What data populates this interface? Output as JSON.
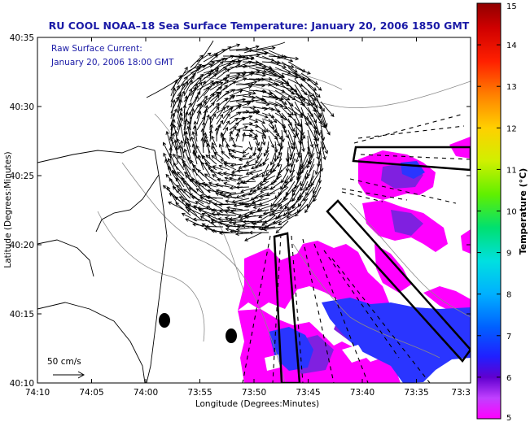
{
  "chart_data": {
    "type": "heatmap",
    "title": "RU COOL  NOAA–18  Sea Surface Temperature:  January 20, 2006 1850 GMT",
    "annotations": [
      "Raw Surface Current:",
      "January 20, 2006 18:00 GMT"
    ],
    "scale_label": "50 cm/s",
    "xlabel": "Longitude (Degrees:Minutes)",
    "ylabel": "Latitude (Degrees:Minutes)",
    "x_ticks": [
      "74:10",
      "74:05",
      "74:00",
      "73:55",
      "73:50",
      "73:45",
      "73:40",
      "73:35",
      "73:3"
    ],
    "y_ticks": [
      "40:35",
      "40:30",
      "40:25",
      "40:20",
      "40:15",
      "40:10"
    ],
    "xlim": [
      -74.1667,
      -73.5
    ],
    "ylim": [
      40.1667,
      40.5833
    ],
    "colorbar": {
      "label": "Temperature (°C)",
      "min": 5,
      "max": 15,
      "ticks": [
        "5",
        "6",
        "7",
        "8",
        "9",
        "10",
        "11",
        "12",
        "13",
        "14",
        "15"
      ]
    },
    "grid": false,
    "legend": "none",
    "colors": {
      "title_text": "#1a1aa6",
      "land_outline": "#000000",
      "bathymetry": "#808080",
      "sst_warm": "#ff00ff",
      "sst_cool": "#3030ff"
    }
  }
}
